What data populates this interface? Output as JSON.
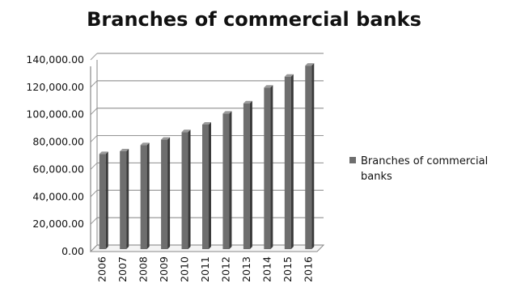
{
  "chart_data": {
    "type": "bar",
    "title": "Branches of commercial banks",
    "categories": [
      "2006",
      "2007",
      "2008",
      "2009",
      "2010",
      "2011",
      "2012",
      "2013",
      "2014",
      "2015",
      "2016"
    ],
    "series": [
      {
        "name": "Branches of commercial banks",
        "values": [
          69500,
          71500,
          76000,
          80000,
          85500,
          91000,
          99000,
          106500,
          118000,
          126000,
          134000
        ]
      }
    ],
    "y_ticks": [
      "0.00",
      "20,000.00",
      "40,000.00",
      "60,000.00",
      "80,000.00",
      "100,000.00",
      "120,000.00",
      "140,000.00"
    ],
    "ylim": [
      0,
      140000
    ],
    "grid": true,
    "legend": "right",
    "colors": {
      "bar_front": "#6e6e6e",
      "bar_side": "#3a3a3a",
      "bar_top": "#9a9a9a",
      "grid": "#9a9a9a"
    }
  }
}
